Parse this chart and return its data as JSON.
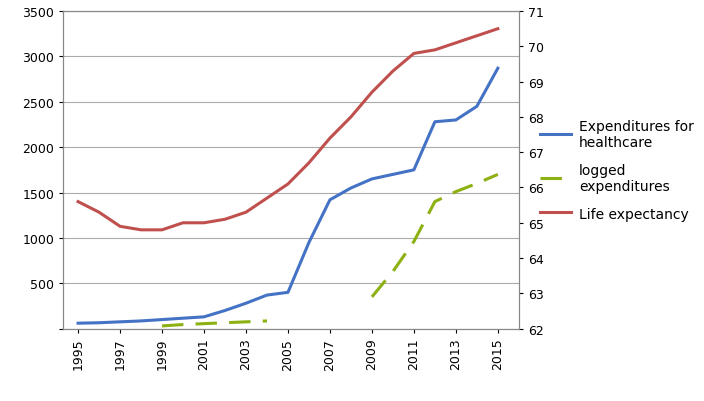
{
  "years": [
    1995,
    1996,
    1997,
    1998,
    1999,
    2000,
    2001,
    2002,
    2003,
    2004,
    2005,
    2006,
    2007,
    2008,
    2009,
    2010,
    2011,
    2012,
    2013,
    2014,
    2015
  ],
  "expenditures": [
    60,
    65,
    75,
    85,
    100,
    115,
    130,
    200,
    280,
    370,
    400,
    950,
    1420,
    1550,
    1650,
    1700,
    1750,
    2280,
    2300,
    2450,
    2870
  ],
  "logged_expenditures_segment1_years": [
    1999,
    2000,
    2001,
    2002,
    2003,
    2004
  ],
  "logged_expenditures_segment1_vals": [
    30,
    45,
    55,
    65,
    75,
    85
  ],
  "logged_expenditures_segment2_years": [
    2009,
    2010,
    2011,
    2012,
    2013,
    2014,
    2015
  ],
  "logged_expenditures_segment2_vals": [
    350,
    630,
    960,
    1400,
    1510,
    1600,
    1700
  ],
  "life_expectancy": [
    65.6,
    65.3,
    64.9,
    64.8,
    64.8,
    65.0,
    65.0,
    65.1,
    65.3,
    65.7,
    66.1,
    66.7,
    67.4,
    68.0,
    68.7,
    69.3,
    69.8,
    69.9,
    70.1,
    70.3,
    70.5
  ],
  "expenditure_color": "#4472C4",
  "logged_color": "#8DB012",
  "life_exp_color": "#C0504D",
  "left_ylim": [
    0,
    3500
  ],
  "right_ylim": [
    62,
    71
  ],
  "left_yticks": [
    0,
    500,
    1000,
    1500,
    2000,
    2500,
    3000,
    3500
  ],
  "right_yticks": [
    62,
    63,
    64,
    65,
    66,
    67,
    68,
    69,
    70,
    71
  ],
  "xticks": [
    1995,
    1997,
    1999,
    2001,
    2003,
    2005,
    2007,
    2009,
    2011,
    2013,
    2015
  ],
  "legend_labels": [
    "Expenditures for\nhealthcare",
    "logged\nexpenditures",
    "Life expectancy"
  ],
  "background_color": "#FFFFFF",
  "grid_color": "#AAAAAA",
  "line_width": 2.2,
  "tick_fontsize": 9,
  "legend_fontsize": 10
}
